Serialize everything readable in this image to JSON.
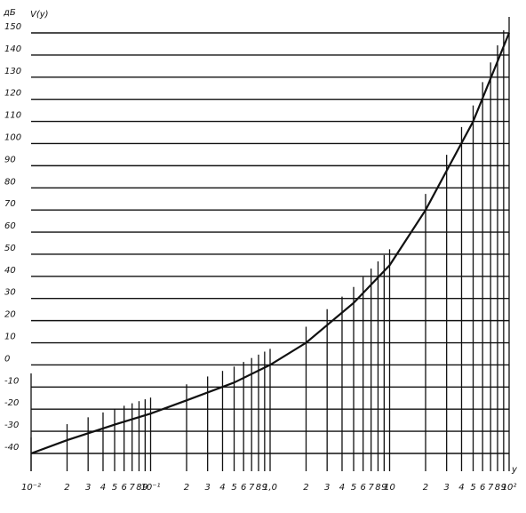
{
  "chart_data": {
    "type": "line",
    "log_x": true,
    "y_unit": "дБ",
    "y_label": "V(y)",
    "x_label": "y",
    "x": [
      0.01,
      0.02,
      0.05,
      0.1,
      0.2,
      0.5,
      1,
      2,
      5,
      10,
      20,
      50,
      100
    ],
    "series": [
      {
        "name": "V(y)",
        "color": "#111111",
        "values": [
          -40,
          -34,
          -27,
          -22,
          -16,
          -8,
          0,
          10,
          28,
          45,
          70,
          110,
          150
        ]
      }
    ],
    "xlim": [
      0.01,
      100
    ],
    "ylim": [
      -40,
      150
    ],
    "xticks": [
      {
        "value": 0.01,
        "label": "10⁻²"
      },
      {
        "value": 0.02,
        "label": "2"
      },
      {
        "value": 0.03,
        "label": "3"
      },
      {
        "value": 0.04,
        "label": "4"
      },
      {
        "value": 0.05,
        "label": "5"
      },
      {
        "value": 0.06,
        "label": "6"
      },
      {
        "value": 0.07,
        "label": "7"
      },
      {
        "value": 0.08,
        "label": "8"
      },
      {
        "value": 0.09,
        "label": "9"
      },
      {
        "value": 0.1,
        "label": "10⁻¹"
      },
      {
        "value": 0.2,
        "label": "2"
      },
      {
        "value": 0.3,
        "label": "3"
      },
      {
        "value": 0.4,
        "label": "4"
      },
      {
        "value": 0.5,
        "label": "5"
      },
      {
        "value": 0.6,
        "label": "6"
      },
      {
        "value": 0.7,
        "label": "7"
      },
      {
        "value": 0.8,
        "label": "8"
      },
      {
        "value": 0.9,
        "label": "9"
      },
      {
        "value": 1,
        "label": "1,0"
      },
      2,
      3,
      4,
      5,
      6,
      7,
      8,
      9,
      10,
      {
        "value": 20,
        "label": "2"
      },
      {
        "value": 30,
        "label": "3"
      },
      {
        "value": 40,
        "label": "4"
      },
      {
        "value": 50,
        "label": "5"
      },
      {
        "value": 60,
        "label": "6"
      },
      {
        "value": 70,
        "label": "7"
      },
      {
        "value": 80,
        "label": "8"
      },
      {
        "value": 90,
        "label": "9"
      },
      {
        "value": 100,
        "label": "10²"
      }
    ],
    "yticks": [
      -40,
      -30,
      -20,
      -10,
      0,
      10,
      20,
      30,
      40,
      50,
      60,
      70,
      80,
      90,
      100,
      110,
      120,
      130,
      140,
      150
    ],
    "grid": true
  }
}
